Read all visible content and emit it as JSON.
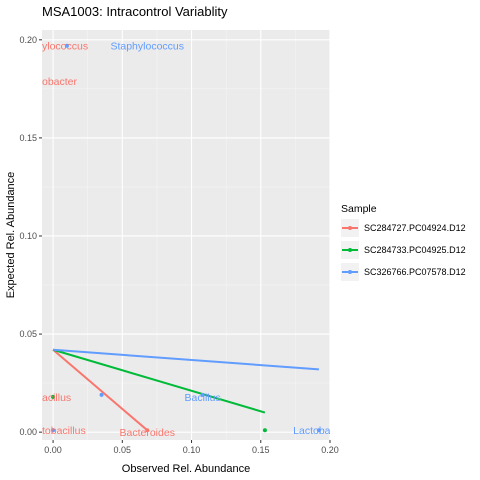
{
  "chart_data": {
    "type": "scatter",
    "title": "MSA1003: Intracontrol Variablity",
    "xlabel": "Observed Rel. Abundance",
    "ylabel": "Expected Rel. Abundance",
    "xlim": [
      -0.008,
      0.2
    ],
    "ylim": [
      -0.004,
      0.205
    ],
    "x_ticks": [
      0.0,
      0.05,
      0.1,
      0.15,
      0.2
    ],
    "x_tick_labels": [
      "0.00",
      "0.05",
      "0.10",
      "0.15",
      "0.20"
    ],
    "y_ticks": [
      0.0,
      0.05,
      0.1,
      0.15,
      0.2
    ],
    "y_tick_labels": [
      "0.00",
      "0.05",
      "0.10",
      "0.15",
      "0.20"
    ],
    "grid": true,
    "legend": {
      "title": "Sample",
      "placement": "right",
      "entries": [
        "SC284727.PC04924.D12",
        "SC284733.PC04925.D12",
        "SC326766.PC07578.D12"
      ]
    },
    "series": [
      {
        "name": "SC284727.PC04924.D12",
        "color": "#F8766D",
        "points": [
          {
            "x": 0.0,
            "y": 0.018
          },
          {
            "x": 0.0,
            "y": 0.001
          },
          {
            "x": 0.068,
            "y": 0.001
          }
        ],
        "fit": [
          [
            0.0,
            0.042
          ],
          [
            0.068,
            0.001
          ]
        ]
      },
      {
        "name": "SC284733.PC04925.D12",
        "color": "#00BA38",
        "points": [
          {
            "x": 0.0,
            "y": 0.018
          },
          {
            "x": 0.153,
            "y": 0.001
          }
        ],
        "fit": [
          [
            0.0,
            0.042
          ],
          [
            0.153,
            0.01
          ]
        ]
      },
      {
        "name": "SC326766.PC07578.D12",
        "color": "#619CFF",
        "points": [
          {
            "x": 0.01,
            "y": 0.197
          },
          {
            "x": 0.035,
            "y": 0.019
          },
          {
            "x": 0.108,
            "y": 0.019
          },
          {
            "x": 0.192,
            "y": 0.001
          },
          {
            "x": 0.0,
            "y": 0.001
          }
        ],
        "fit": [
          [
            0.0,
            0.042
          ],
          [
            0.192,
            0.032
          ]
        ]
      }
    ],
    "annotations": [
      {
        "text": "ylococcus",
        "x": 0.0,
        "y": 0.197,
        "color": "#F8766D"
      },
      {
        "text": "Staphylococcus",
        "x": 0.068,
        "y": 0.197,
        "color": "#619CFF"
      },
      {
        "text": "obacter",
        "x": 0.0,
        "y": 0.179,
        "color": "#F8766D"
      },
      {
        "text": "acillus",
        "x": 0.0,
        "y": 0.018,
        "color": "#F8766D"
      },
      {
        "text": "Bacillus",
        "x": 0.108,
        "y": 0.018,
        "color": "#619CFF"
      },
      {
        "text": "tobacillus",
        "x": 0.0,
        "y": 0.001,
        "color": "#F8766D"
      },
      {
        "text": "Bacteroides",
        "x": 0.068,
        "y": 0.0,
        "color": "#F8766D"
      },
      {
        "text": "Lactobac",
        "x": 0.19,
        "y": 0.001,
        "color": "#619CFF"
      }
    ]
  }
}
